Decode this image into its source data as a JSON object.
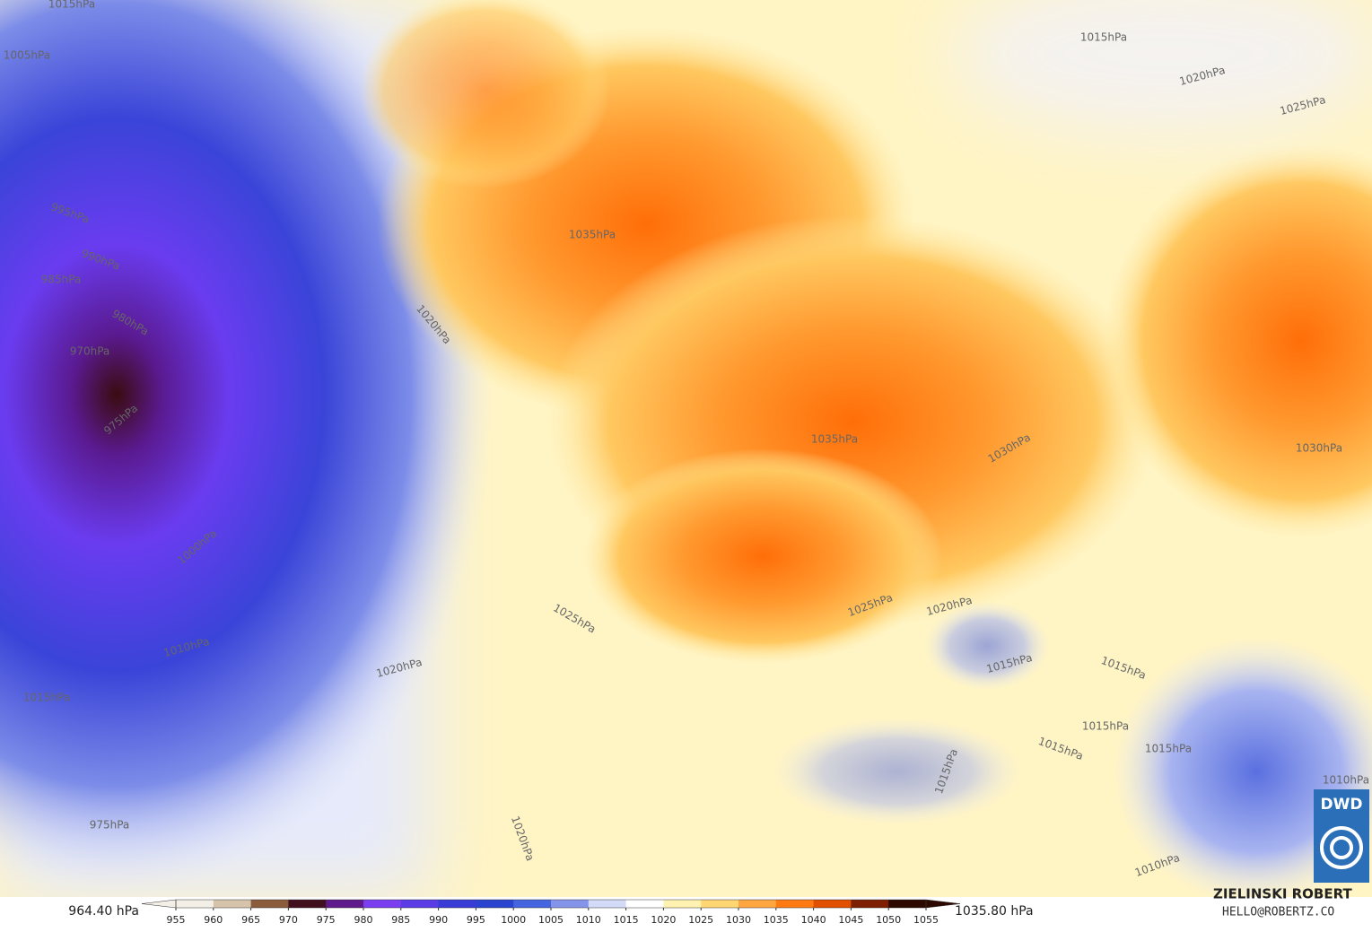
{
  "map": {
    "isobar_labels": [
      "1015hPa",
      "1005hPa",
      "995hPa",
      "990hPa",
      "985hPa",
      "980hPa",
      "970hPa",
      "975hPa",
      "1000hPa",
      "1010hPa",
      "1015hPa",
      "975hPa",
      "1020hPa",
      "1035hPa",
      "1035hPa",
      "1030hPa",
      "1030hPa",
      "1025hPa",
      "1020hPa",
      "1025hPa",
      "1020hPa",
      "1015hPa",
      "1015hPa",
      "1015hPa",
      "1015hPa",
      "1015hPa",
      "1015hPa",
      "1010hPa",
      "1010hPa",
      "1020hPa",
      "1015hPa",
      "1020hPa",
      "1025hPa"
    ],
    "logo": "DWD"
  },
  "colorbar": {
    "min_label": "964.40 hPa",
    "max_label": "1035.80 hPa",
    "ticks": [
      955,
      960,
      965,
      970,
      975,
      980,
      985,
      990,
      995,
      1000,
      1005,
      1010,
      1015,
      1020,
      1025,
      1030,
      1035,
      1040,
      1045,
      1050,
      1055
    ],
    "colors": [
      "#f3eee6",
      "#d6c4aa",
      "#8a5c3c",
      "#40101e",
      "#5e1a8a",
      "#7a3ef0",
      "#5a3ce6",
      "#3a3cd8",
      "#2a44d0",
      "#4464e0",
      "#8494ea",
      "#d2daf8",
      "#ffffff",
      "#fff2b0",
      "#ffd672",
      "#ffa640",
      "#ff7a12",
      "#e05000",
      "#7e2000",
      "#2c0800"
    ]
  },
  "credits": {
    "author": "ZIELINSKI ROBERT",
    "email": "HELLO@ROBERTZ.CO"
  }
}
